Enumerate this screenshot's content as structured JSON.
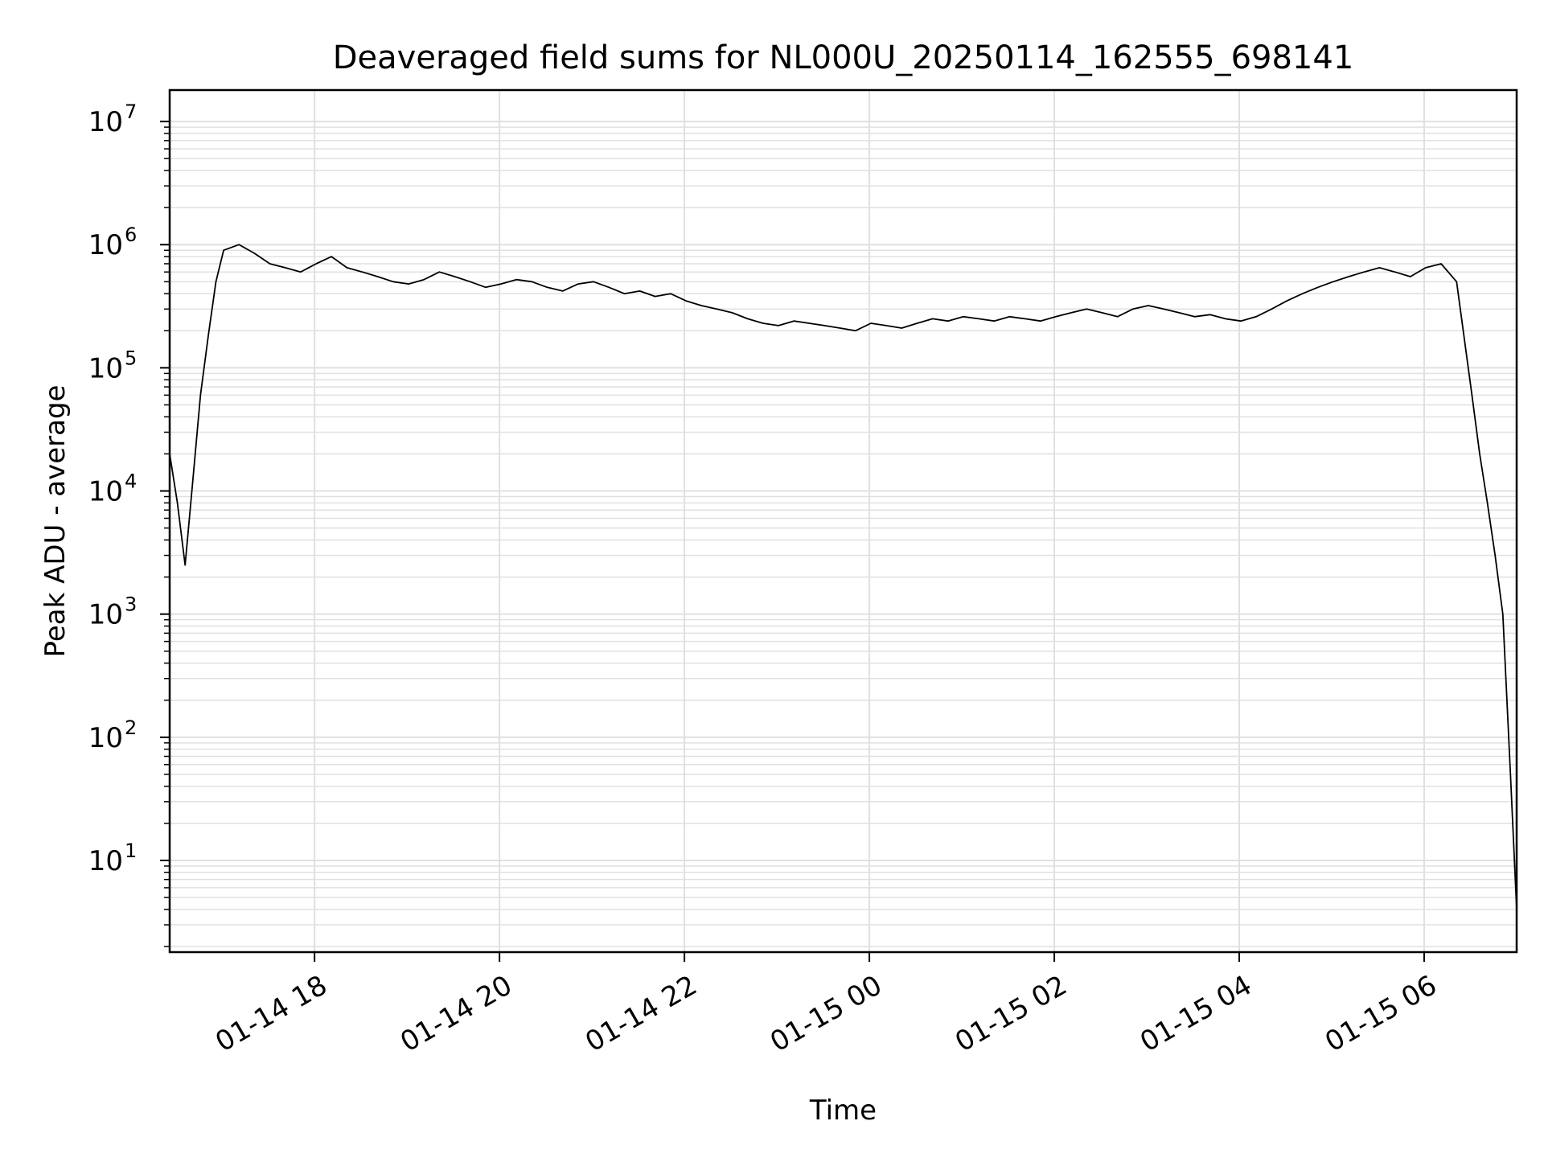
{
  "chart_data": {
    "type": "line",
    "title": "Deaveraged field sums for NL000U_20250114_162555_698141",
    "xlabel": "Time",
    "ylabel": "Peak ADU - average",
    "yscale": "log",
    "ylim": [
      1.8,
      18000000
    ],
    "xlim": [
      "2025-01-14 16:26",
      "2025-01-15 07:00"
    ],
    "grid": true,
    "line_color": "#000000",
    "grid_color": "#e0e0e0",
    "x_ticks": [
      {
        "value": "2025-01-14 18:00",
        "label": "01-14 18"
      },
      {
        "value": "2025-01-14 20:00",
        "label": "01-14 20"
      },
      {
        "value": "2025-01-14 22:00",
        "label": "01-14 22"
      },
      {
        "value": "2025-01-15 00:00",
        "label": "01-15 00"
      },
      {
        "value": "2025-01-15 02:00",
        "label": "01-15 02"
      },
      {
        "value": "2025-01-15 04:00",
        "label": "01-15 04"
      },
      {
        "value": "2025-01-15 06:00",
        "label": "01-15 06"
      }
    ],
    "y_ticks": [
      {
        "value": 10,
        "base": "10",
        "exp": "1"
      },
      {
        "value": 100,
        "base": "10",
        "exp": "2"
      },
      {
        "value": 1000,
        "base": "10",
        "exp": "3"
      },
      {
        "value": 10000,
        "base": "10",
        "exp": "4"
      },
      {
        "value": 100000,
        "base": "10",
        "exp": "5"
      },
      {
        "value": 1000000,
        "base": "10",
        "exp": "6"
      },
      {
        "value": 10000000,
        "base": "10",
        "exp": "7"
      }
    ],
    "series": [
      {
        "x": [
          "2025-01-14 16:26",
          "2025-01-14 16:31",
          "2025-01-14 16:36",
          "2025-01-14 16:41",
          "2025-01-14 16:46",
          "2025-01-14 16:51",
          "2025-01-14 16:56",
          "2025-01-14 17:01",
          "2025-01-14 17:11",
          "2025-01-14 17:21",
          "2025-01-14 17:31",
          "2025-01-14 17:41",
          "2025-01-14 17:51",
          "2025-01-14 18:01",
          "2025-01-14 18:11",
          "2025-01-14 18:21",
          "2025-01-14 18:31",
          "2025-01-14 18:41",
          "2025-01-14 18:51",
          "2025-01-14 19:01",
          "2025-01-14 19:11",
          "2025-01-14 19:21",
          "2025-01-14 19:31",
          "2025-01-14 19:41",
          "2025-01-14 19:51",
          "2025-01-14 20:01",
          "2025-01-14 20:11",
          "2025-01-14 20:21",
          "2025-01-14 20:31",
          "2025-01-14 20:41",
          "2025-01-14 20:51",
          "2025-01-14 21:01",
          "2025-01-14 21:11",
          "2025-01-14 21:21",
          "2025-01-14 21:31",
          "2025-01-14 21:41",
          "2025-01-14 21:51",
          "2025-01-14 22:01",
          "2025-01-14 22:11",
          "2025-01-14 22:21",
          "2025-01-14 22:31",
          "2025-01-14 22:41",
          "2025-01-14 22:51",
          "2025-01-14 23:01",
          "2025-01-14 23:11",
          "2025-01-14 23:21",
          "2025-01-14 23:31",
          "2025-01-14 23:41",
          "2025-01-14 23:51",
          "2025-01-15 00:01",
          "2025-01-15 00:11",
          "2025-01-15 00:21",
          "2025-01-15 00:31",
          "2025-01-15 00:41",
          "2025-01-15 00:51",
          "2025-01-15 01:01",
          "2025-01-15 01:11",
          "2025-01-15 01:21",
          "2025-01-15 01:31",
          "2025-01-15 01:41",
          "2025-01-15 01:51",
          "2025-01-15 02:01",
          "2025-01-15 02:11",
          "2025-01-15 02:21",
          "2025-01-15 02:31",
          "2025-01-15 02:41",
          "2025-01-15 02:51",
          "2025-01-15 03:01",
          "2025-01-15 03:11",
          "2025-01-15 03:21",
          "2025-01-15 03:31",
          "2025-01-15 03:41",
          "2025-01-15 03:51",
          "2025-01-15 04:01",
          "2025-01-15 04:11",
          "2025-01-15 04:21",
          "2025-01-15 04:31",
          "2025-01-15 04:41",
          "2025-01-15 04:51",
          "2025-01-15 05:01",
          "2025-01-15 05:11",
          "2025-01-15 05:21",
          "2025-01-15 05:31",
          "2025-01-15 05:41",
          "2025-01-15 05:51",
          "2025-01-15 06:01",
          "2025-01-15 06:11",
          "2025-01-15 06:21",
          "2025-01-15 06:31",
          "2025-01-15 06:36",
          "2025-01-15 06:41",
          "2025-01-15 06:46",
          "2025-01-15 06:51",
          "2025-01-15 06:56",
          "2025-01-15 07:00"
        ],
        "y": [
          20000,
          8000,
          2500,
          12000,
          60000,
          180000,
          500000,
          900000,
          1000000,
          850000,
          700000,
          650000,
          600000,
          700000,
          800000,
          650000,
          600000,
          550000,
          500000,
          480000,
          520000,
          600000,
          550000,
          500000,
          450000,
          480000,
          520000,
          500000,
          450000,
          420000,
          480000,
          500000,
          450000,
          400000,
          420000,
          380000,
          400000,
          350000,
          320000,
          300000,
          280000,
          250000,
          230000,
          220000,
          240000,
          230000,
          220000,
          210000,
          200000,
          230000,
          220000,
          210000,
          230000,
          250000,
          240000,
          260000,
          250000,
          240000,
          260000,
          250000,
          240000,
          260000,
          280000,
          300000,
          280000,
          260000,
          300000,
          320000,
          300000,
          280000,
          260000,
          270000,
          250000,
          240000,
          260000,
          300000,
          350000,
          400000,
          450000,
          500000,
          550000,
          600000,
          650000,
          600000,
          550000,
          650000,
          700000,
          500000,
          60000,
          20000,
          8000,
          3000,
          1000,
          50,
          4
        ]
      }
    ]
  }
}
